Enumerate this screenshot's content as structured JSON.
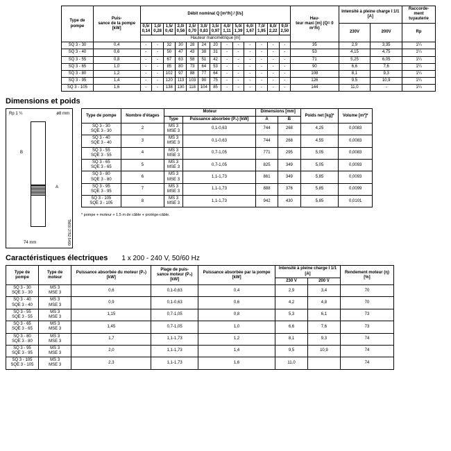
{
  "table1": {
    "headers": {
      "col1": "Type de pompe",
      "col2": "Puis-\nsance de la pompe [kW]",
      "debit": "Débit nominal Q [m³/h] / [l/s]",
      "hauteur": "Hau-\nteur maxi [m] (Q= 0 m³/h)",
      "intensite": "Intensité à pleine charge I 1/1 [A]",
      "raccord": "Raccorde-\nment tuyauterie",
      "flow": [
        "0,5/\n0,14",
        "1,0/\n0,28",
        "1,5/\n0,42",
        "2,0/\n0,56",
        "2,5/\n0,70",
        "3,0/\n0,83",
        "3,5/\n0,97",
        "4,0/\n1,11",
        "5,0/\n1,39",
        "6,0/\n1,67",
        "7,0/\n1,95",
        "8,0/\n2,22",
        "9,0/\n2,50"
      ],
      "v230": "230V",
      "v200": "200V",
      "rp": "Rp",
      "hm": "Hauteur manométrique [m]"
    },
    "rows": [
      [
        "SQ 3 - 30",
        "0,4",
        "-",
        "-",
        "32",
        "30",
        "28",
        "24",
        "20",
        "-",
        "-",
        "-",
        "-",
        "-",
        "-",
        "35",
        "2,9",
        "3,35",
        "1¼"
      ],
      [
        "SQ 3 - 40",
        "0,6",
        "-",
        "-",
        "50",
        "47",
        "43",
        "38",
        "31",
        "-",
        "-",
        "-",
        "-",
        "-",
        "-",
        "53",
        "4,15",
        "4,75",
        "1¼"
      ],
      [
        "SQ 3 - 55",
        "0,8",
        "-",
        "-",
        "67",
        "63",
        "58",
        "51",
        "42",
        "-",
        "-",
        "-",
        "-",
        "-",
        "-",
        "71",
        "5,25",
        "6,05",
        "1¼"
      ],
      [
        "SQ 3 - 65",
        "1,0",
        "-",
        "-",
        "85",
        "80",
        "73",
        "64",
        "53",
        "-",
        "-",
        "-",
        "-",
        "-",
        "-",
        "90",
        "6,6",
        "7,6",
        "1¼"
      ],
      [
        "SQ 3 - 80",
        "1,2",
        "-",
        "-",
        "102",
        "97",
        "88",
        "77",
        "64",
        "-",
        "-",
        "-",
        "-",
        "-",
        "-",
        "108",
        "8,1",
        "9,3",
        "1¼"
      ],
      [
        "SQ 3 - 95",
        "1,4",
        "-",
        "-",
        "120",
        "113",
        "103",
        "90",
        "75",
        "-",
        "-",
        "-",
        "-",
        "-",
        "-",
        "126",
        "9,5",
        "10,9",
        "1¼"
      ],
      [
        "SQ 3 - 105",
        "1,6",
        "-",
        "-",
        "138",
        "130",
        "118",
        "104",
        "85",
        "-",
        "-",
        "-",
        "-",
        "-",
        "-",
        "144",
        "11,0",
        "-",
        "1¼"
      ]
    ]
  },
  "dim_title": "Dimensions et poids",
  "diagram": {
    "rp": "Rp 1 ¼",
    "d": "ø8 mm",
    "w": "74 mm",
    "ref": "TM00 2752 5499",
    "a": "A",
    "b": "B"
  },
  "table2": {
    "headers": {
      "type": "Type de pompe",
      "etages": "Nombre d'étages",
      "moteur": "Moteur",
      "mtype": "Type",
      "puiss": "Puissance absorbée (P₁) [kW]",
      "dim": "Dimensions [mm]",
      "a": "A",
      "b": "B",
      "poids": "Poids net [kg]*",
      "vol": "Volume [m³]*"
    },
    "rows": [
      [
        "SQ 3 - 30\nSQE 3 - 30",
        "2",
        "MS 3\nMSE 3",
        "0,1-0,63",
        "744",
        "268",
        "4,25",
        "0,0083"
      ],
      [
        "SQ 3 - 40\nSQE 3 - 40",
        "3",
        "MS 3\nMSE 3",
        "0,1-0,63",
        "744",
        "268",
        "4,55",
        "0,0083"
      ],
      [
        "SQ 3 - 55\nSQE 3 - 55",
        "4",
        "MS 3\nMSE 3",
        "0,7-1,05",
        "771",
        "295",
        "5,05",
        "0,0083"
      ],
      [
        "SQ 3 - 65\nSQE 3 - 65",
        "5",
        "MS 3\nMSE 3",
        "0,7-1,05",
        "825",
        "349",
        "5,05",
        "0,0093"
      ],
      [
        "SQ 3 - 80\nSQE 3 - 80",
        "6",
        "MS 3\nMSE 3",
        "1,1-1,73",
        "861",
        "349",
        "5,85",
        "0,0093"
      ],
      [
        "SQ 3 - 95\nSQE 3 - 95",
        "7",
        "MS 3\nMSE 3",
        "1,1-1,73",
        "888",
        "376",
        "5,85",
        "0,0099"
      ],
      [
        "SQ 3 - 105\nSQE 3 - 105",
        "8",
        "MS 3\nMSE 3",
        "1,1-1,73",
        "942",
        "430",
        "5,85",
        "0,0101"
      ]
    ],
    "note": "* pompe + moteur + 1,5 m de câble + protège-câble."
  },
  "elec_title": "Caractéristiques électriques",
  "elec_sub": "1 x 200 - 240 V, 50/60 Hz",
  "table3": {
    "headers": {
      "type": "Type de pompe",
      "moteur": "Type de moteur",
      "p1": "Puissance absorbée du moteur (P₁) [kW]",
      "plage": "Plage de puis-\nsance moteur (P₂) [kW]",
      "ppompe": "Puissance absorbée par la pompe [kW]",
      "intensite": "Intensité à pleine charge I 1/1 [A]",
      "v230": "230 V",
      "v200": "200 V",
      "rend": "Rendement moteur (η) [%]"
    },
    "rows": [
      [
        "SQ 3 - 30\nSQE 3 - 30",
        "MS 3\nMSE 3",
        "0,6",
        "0,1-0,63",
        "0,4",
        "2,9",
        "3,4",
        "70"
      ],
      [
        "SQ 3 - 40\nSQE 3 - 40",
        "MS 3\nMSE 3",
        "0,9",
        "0,1-0,63",
        "0,6",
        "4,2",
        "4,8",
        "70"
      ],
      [
        "SQ 3 - 55\nSQE 3 - 55",
        "MS 3\nMSE 3",
        "1,15",
        "0,7-1,05",
        "0,8",
        "5,3",
        "6,1",
        "73"
      ],
      [
        "SQ 3 - 65\nSQE 3 - 65",
        "MS 3\nMSE 3",
        "1,45",
        "0,7-1,05",
        "1,0",
        "6,6",
        "7,6",
        "73"
      ],
      [
        "SQ 3 - 80\nSQE 3 - 80",
        "MS 3\nMSE 3",
        "1,7",
        "1,1-1,73",
        "1,2",
        "8,1",
        "9,3",
        "74"
      ],
      [
        "SQ 3 - 95\nSQE 3 - 95",
        "MS 3\nMSE 3",
        "2,0",
        "1,1-1,73",
        "1,4",
        "9,5",
        "10,9",
        "74"
      ],
      [
        "SQ 3 - 105\nSQE 3 - 105",
        "MS 3\nMSE 3",
        "2,3",
        "1,1-1,73",
        "1,6",
        "11,0",
        "",
        "74"
      ]
    ]
  }
}
